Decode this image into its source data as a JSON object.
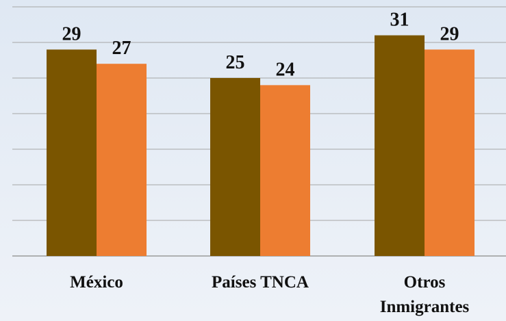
{
  "chart_data": {
    "type": "bar",
    "categories": [
      [
        "México"
      ],
      [
        "Países TNCA"
      ],
      [
        "Otros",
        "Inmigrantes"
      ]
    ],
    "series": [
      {
        "values": [
          29,
          25,
          31
        ],
        "color": "#7a5500"
      },
      {
        "values": [
          27,
          24,
          29
        ],
        "color": "#ed7d31"
      }
    ],
    "ylim": [
      0,
      35
    ],
    "grid": true,
    "data_labels": true,
    "legend": "none"
  }
}
